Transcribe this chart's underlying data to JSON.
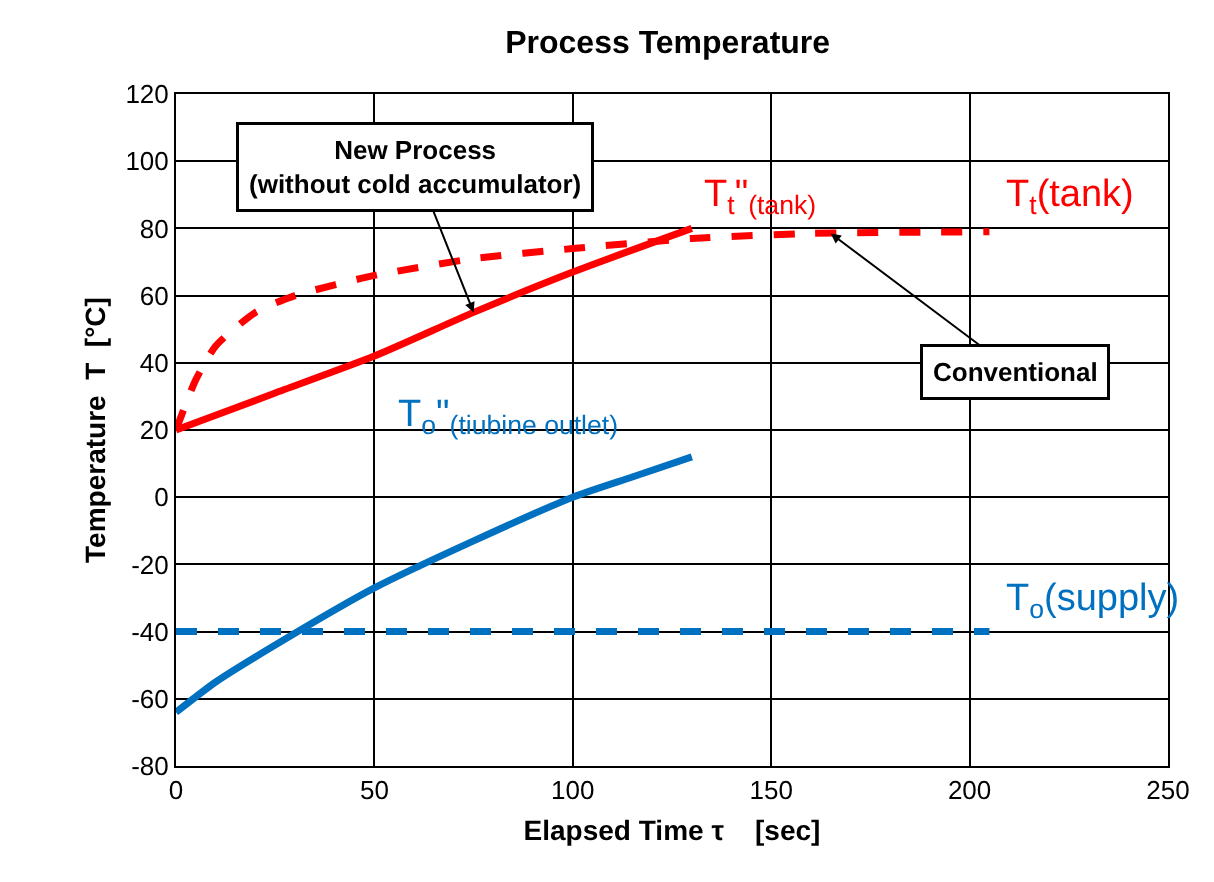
{
  "chart_data": {
    "type": "line",
    "title": "Process Temperature",
    "xlabel": "Elapsed Time τ    [sec]",
    "ylabel": "Temperature  T  [°C]",
    "series": [
      {
        "name": "T$_{t}$\"$_{(tank)}$",
        "color": "#ff0000",
        "line_style": "solid",
        "x": [
          0,
          25,
          50,
          75,
          100,
          130
        ],
        "values": [
          20,
          31,
          42,
          55,
          67,
          80
        ]
      },
      {
        "name": "T$_{t}$(tank)",
        "color": "#ff0000",
        "line_style": "dashed",
        "x": [
          0,
          5,
          10,
          20,
          30,
          50,
          75,
          100,
          130,
          160,
          205
        ],
        "values": [
          20,
          35,
          45,
          55,
          60,
          66,
          71,
          74,
          77,
          78.5,
          79
        ]
      },
      {
        "name": "T$_{o}$\"$_{(tiubine outlet)}$",
        "color": "#0070c0",
        "line_style": "solid",
        "x": [
          0,
          10,
          25,
          50,
          75,
          100,
          115,
          130
        ],
        "values": [
          -64,
          -55,
          -44,
          -27,
          -13,
          0,
          6,
          12
        ]
      },
      {
        "name": "T$_{o}$(supply)",
        "color": "#0070c0",
        "line_style": "dashed",
        "x": [
          0,
          205
        ],
        "values": [
          -40,
          -40
        ]
      }
    ],
    "annotations": [
      {
        "text": "New Process\n(without cold accumulator)",
        "x": 75,
        "y": 55
      },
      {
        "text": "Conventional",
        "x": 165,
        "y": 78.5
      }
    ],
    "xlim": [
      0,
      250
    ],
    "xticks": [
      0,
      50,
      100,
      150,
      200,
      250
    ],
    "ylim": [
      -80,
      120
    ],
    "yticks": [
      -80,
      -60,
      -40,
      -20,
      0,
      20,
      40,
      60,
      80,
      100,
      120
    ],
    "grid": true,
    "legend": false,
    "marker": "none"
  }
}
